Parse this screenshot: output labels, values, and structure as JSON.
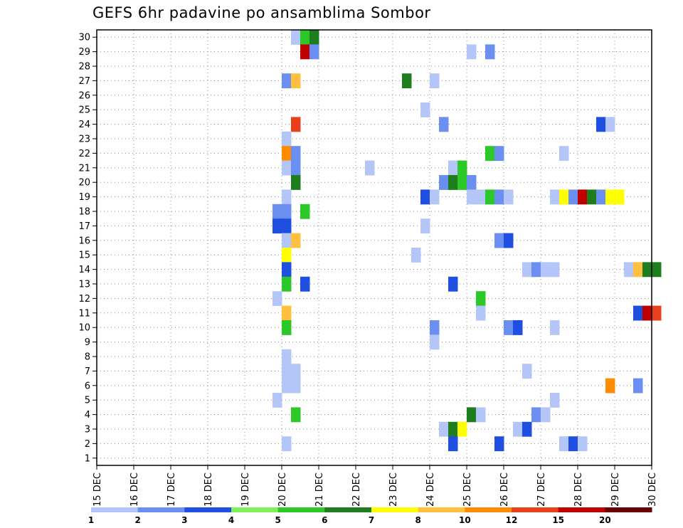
{
  "title": "GEFS 6hr padavine po ansamblima Sombor",
  "chart_data": {
    "type": "heatmap",
    "title": "GEFS 6hr padavine po ansamblima Sombor",
    "x_ticks": [
      "15 DEC",
      "16 DEC",
      "17 DEC",
      "18 DEC",
      "19 DEC",
      "20 DEC",
      "21 DEC",
      "22 DEC",
      "23 DEC",
      "24 DEC",
      "25 DEC",
      "26 DEC",
      "27 DEC",
      "28 DEC",
      "29 DEC",
      "30 DEC"
    ],
    "x_range": [
      "15 DEC 00",
      "30 DEC 00"
    ],
    "y_range": [
      1,
      30
    ],
    "y_ticks": [
      1,
      2,
      3,
      4,
      5,
      6,
      7,
      8,
      9,
      10,
      11,
      12,
      13,
      14,
      15,
      16,
      17,
      18,
      19,
      20,
      21,
      22,
      23,
      24,
      25,
      26,
      27,
      28,
      29,
      30
    ],
    "grid": true,
    "colorbar": {
      "labels": [
        "1",
        "2",
        "3",
        "4",
        "5",
        "6",
        "7",
        "8",
        "10",
        "12",
        "15",
        "20"
      ],
      "colors": [
        "#b3c6f7",
        "#6a8ff0",
        "#1f4fe0",
        "#7fef5a",
        "#2cc827",
        "#1e7e1e",
        "#ffff00",
        "#ffc040",
        "#ff8c00",
        "#e8401a",
        "#c00000",
        "#6b0000"
      ]
    },
    "cells": [
      {
        "member": 30,
        "day": 20.25,
        "v": 1
      },
      {
        "member": 30,
        "day": 20.5,
        "v": 5
      },
      {
        "member": 30,
        "day": 20.75,
        "v": 6
      },
      {
        "member": 29,
        "day": 20.5,
        "v": 15
      },
      {
        "member": 29,
        "day": 20.75,
        "v": 2
      },
      {
        "member": 29,
        "day": 25.0,
        "v": 1
      },
      {
        "member": 29,
        "day": 25.5,
        "v": 2
      },
      {
        "member": 27,
        "day": 20.0,
        "v": 2
      },
      {
        "member": 27,
        "day": 20.25,
        "v": 8
      },
      {
        "member": 27,
        "day": 23.25,
        "v": 6
      },
      {
        "member": 27,
        "day": 24.0,
        "v": 1
      },
      {
        "member": 25,
        "day": 23.75,
        "v": 1
      },
      {
        "member": 24,
        "day": 20.25,
        "v": 12
      },
      {
        "member": 24,
        "day": 24.25,
        "v": 2
      },
      {
        "member": 24,
        "day": 28.5,
        "v": 3
      },
      {
        "member": 24,
        "day": 28.75,
        "v": 1
      },
      {
        "member": 23,
        "day": 20.0,
        "v": 1
      },
      {
        "member": 22,
        "day": 20.0,
        "v": 10
      },
      {
        "member": 22,
        "day": 20.25,
        "v": 2
      },
      {
        "member": 22,
        "day": 25.5,
        "v": 5
      },
      {
        "member": 22,
        "day": 25.75,
        "v": 2
      },
      {
        "member": 22,
        "day": 27.5,
        "v": 1
      },
      {
        "member": 21,
        "day": 20.0,
        "v": 1
      },
      {
        "member": 21,
        "day": 20.25,
        "v": 2
      },
      {
        "member": 21,
        "day": 22.25,
        "v": 1
      },
      {
        "member": 21,
        "day": 24.5,
        "v": 1
      },
      {
        "member": 21,
        "day": 24.75,
        "v": 5
      },
      {
        "member": 20,
        "day": 20.25,
        "v": 6
      },
      {
        "member": 20,
        "day": 24.25,
        "v": 2
      },
      {
        "member": 20,
        "day": 24.5,
        "v": 6
      },
      {
        "member": 20,
        "day": 24.75,
        "v": 5
      },
      {
        "member": 20,
        "day": 25.0,
        "v": 2
      },
      {
        "member": 19,
        "day": 20.0,
        "v": 1
      },
      {
        "member": 19,
        "day": 23.75,
        "v": 3
      },
      {
        "member": 19,
        "day": 24.0,
        "v": 1
      },
      {
        "member": 19,
        "day": 25.0,
        "v": 1
      },
      {
        "member": 19,
        "day": 25.25,
        "v": 1
      },
      {
        "member": 19,
        "day": 25.5,
        "v": 5
      },
      {
        "member": 19,
        "day": 25.75,
        "v": 2
      },
      {
        "member": 19,
        "day": 26.0,
        "v": 1
      },
      {
        "member": 19,
        "day": 27.25,
        "v": 1
      },
      {
        "member": 19,
        "day": 27.5,
        "v": 7
      },
      {
        "member": 19,
        "day": 27.75,
        "v": 2
      },
      {
        "member": 19,
        "day": 28.0,
        "v": 15
      },
      {
        "member": 19,
        "day": 28.25,
        "v": 6
      },
      {
        "member": 19,
        "day": 28.5,
        "v": 2
      },
      {
        "member": 19,
        "day": 28.75,
        "v": 7
      },
      {
        "member": 19,
        "day": 29.0,
        "v": 7
      },
      {
        "member": 18,
        "day": 19.75,
        "v": 2
      },
      {
        "member": 18,
        "day": 20.0,
        "v": 2
      },
      {
        "member": 18,
        "day": 20.5,
        "v": 5
      },
      {
        "member": 17,
        "day": 19.75,
        "v": 3
      },
      {
        "member": 17,
        "day": 20.0,
        "v": 3
      },
      {
        "member": 17,
        "day": 23.75,
        "v": 1
      },
      {
        "member": 16,
        "day": 20.0,
        "v": 1
      },
      {
        "member": 16,
        "day": 20.25,
        "v": 8
      },
      {
        "member": 16,
        "day": 25.75,
        "v": 2
      },
      {
        "member": 16,
        "day": 26.0,
        "v": 3
      },
      {
        "member": 15,
        "day": 20.0,
        "v": 7
      },
      {
        "member": 15,
        "day": 23.5,
        "v": 1
      },
      {
        "member": 14,
        "day": 20.0,
        "v": 3
      },
      {
        "member": 14,
        "day": 26.5,
        "v": 1
      },
      {
        "member": 14,
        "day": 26.75,
        "v": 2
      },
      {
        "member": 14,
        "day": 27.0,
        "v": 1
      },
      {
        "member": 14,
        "day": 27.25,
        "v": 1
      },
      {
        "member": 14,
        "day": 29.25,
        "v": 1
      },
      {
        "member": 14,
        "day": 29.5,
        "v": 8
      },
      {
        "member": 14,
        "day": 29.75,
        "v": 6
      },
      {
        "member": 14,
        "day": 30.0,
        "v": 6
      },
      {
        "member": 13,
        "day": 20.0,
        "v": 5
      },
      {
        "member": 13,
        "day": 20.5,
        "v": 3
      },
      {
        "member": 13,
        "day": 24.5,
        "v": 3
      },
      {
        "member": 12,
        "day": 19.75,
        "v": 1
      },
      {
        "member": 12,
        "day": 25.25,
        "v": 5
      },
      {
        "member": 11,
        "day": 20.0,
        "v": 8
      },
      {
        "member": 11,
        "day": 25.25,
        "v": 1
      },
      {
        "member": 11,
        "day": 29.5,
        "v": 3
      },
      {
        "member": 11,
        "day": 29.75,
        "v": 15
      },
      {
        "member": 11,
        "day": 30.0,
        "v": 12
      },
      {
        "member": 10,
        "day": 20.0,
        "v": 5
      },
      {
        "member": 10,
        "day": 24.0,
        "v": 2
      },
      {
        "member": 10,
        "day": 26.0,
        "v": 2
      },
      {
        "member": 10,
        "day": 26.25,
        "v": 3
      },
      {
        "member": 10,
        "day": 27.25,
        "v": 1
      },
      {
        "member": 9,
        "day": 24.0,
        "v": 1
      },
      {
        "member": 8,
        "day": 20.0,
        "v": 1
      },
      {
        "member": 7,
        "day": 20.0,
        "v": 1
      },
      {
        "member": 7,
        "day": 20.25,
        "v": 1
      },
      {
        "member": 7,
        "day": 26.5,
        "v": 1
      },
      {
        "member": 6,
        "day": 20.0,
        "v": 1
      },
      {
        "member": 6,
        "day": 20.25,
        "v": 1
      },
      {
        "member": 6,
        "day": 28.75,
        "v": 10
      },
      {
        "member": 6,
        "day": 29.5,
        "v": 2
      },
      {
        "member": 5,
        "day": 19.75,
        "v": 1
      },
      {
        "member": 5,
        "day": 27.25,
        "v": 1
      },
      {
        "member": 4,
        "day": 20.25,
        "v": 5
      },
      {
        "member": 4,
        "day": 25.0,
        "v": 6
      },
      {
        "member": 4,
        "day": 25.25,
        "v": 1
      },
      {
        "member": 4,
        "day": 26.75,
        "v": 2
      },
      {
        "member": 4,
        "day": 27.0,
        "v": 1
      },
      {
        "member": 3,
        "day": 24.25,
        "v": 1
      },
      {
        "member": 3,
        "day": 24.5,
        "v": 6
      },
      {
        "member": 3,
        "day": 24.75,
        "v": 7
      },
      {
        "member": 3,
        "day": 26.25,
        "v": 1
      },
      {
        "member": 3,
        "day": 26.5,
        "v": 3
      },
      {
        "member": 2,
        "day": 20.0,
        "v": 1
      },
      {
        "member": 2,
        "day": 24.5,
        "v": 3
      },
      {
        "member": 2,
        "day": 25.75,
        "v": 3
      },
      {
        "member": 2,
        "day": 27.5,
        "v": 1
      },
      {
        "member": 2,
        "day": 27.75,
        "v": 3
      },
      {
        "member": 2,
        "day": 28.0,
        "v": 1
      }
    ]
  }
}
